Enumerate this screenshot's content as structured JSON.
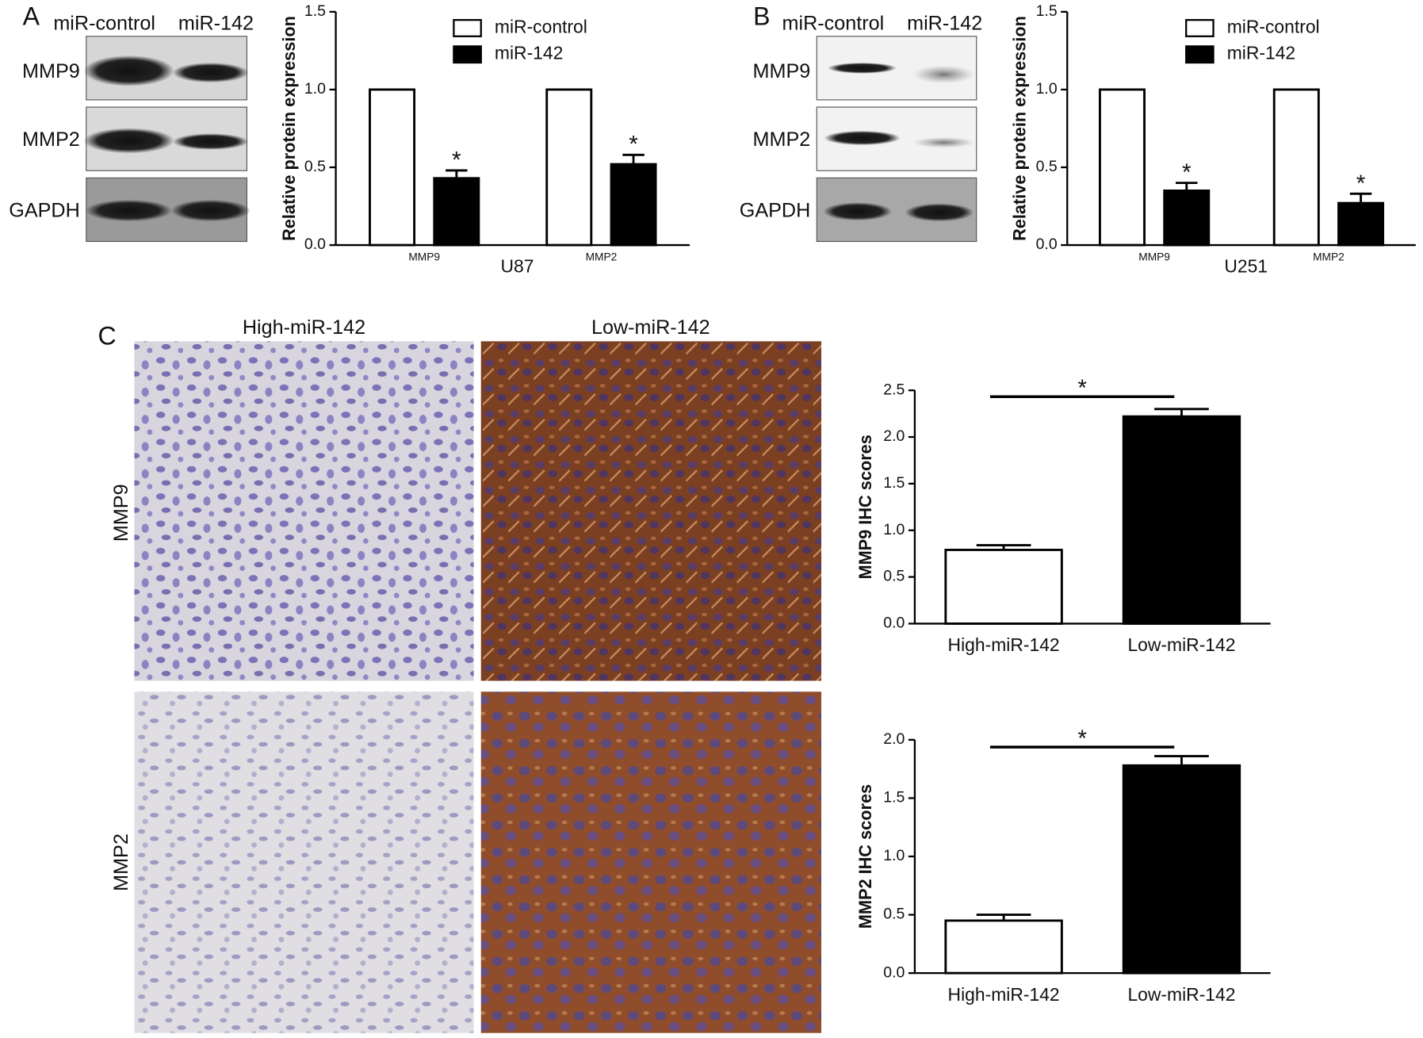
{
  "panels": {
    "A": {
      "label": "A",
      "lanes": [
        "miR-control",
        "miR-142"
      ],
      "rows": [
        "MMP9",
        "MMP2",
        "GAPDH"
      ]
    },
    "B": {
      "label": "B",
      "lanes": [
        "miR-control",
        "miR-142"
      ],
      "rows": [
        "MMP9",
        "MMP2",
        "GAPDH"
      ]
    },
    "C": {
      "label": "C",
      "columns": [
        "High-miR-142",
        "Low-miR-142"
      ],
      "rows": [
        "MMP9",
        "MMP2"
      ]
    }
  },
  "chart_data": [
    {
      "type": "bar",
      "ylabel": "Relative protein expression",
      "xlabel": "U87",
      "categories": [
        "MMP9",
        "MMP2"
      ],
      "series": [
        {
          "name": "miR-control",
          "color": "#ffffff",
          "values": [
            1,
            1
          ]
        },
        {
          "name": "miR-142",
          "color": "#000000",
          "values": [
            0.43,
            0.52
          ],
          "errors": [
            0.05,
            0.06
          ],
          "significance": [
            "*",
            "*"
          ]
        }
      ],
      "ylim": [
        0,
        1.5
      ],
      "yticks": [
        {
          "value": 0,
          "label": "0.0"
        },
        0.5,
        {
          "value": 1,
          "label": "1.0"
        },
        1.5
      ],
      "legend": "top"
    },
    {
      "type": "bar",
      "ylabel": "Relative protein expression",
      "xlabel": "U251",
      "categories": [
        "MMP9",
        "MMP2"
      ],
      "series": [
        {
          "name": "miR-control",
          "color": "#ffffff",
          "values": [
            1,
            1
          ]
        },
        {
          "name": "miR-142",
          "color": "#000000",
          "values": [
            0.35,
            0.27
          ],
          "errors": [
            0.05,
            0.06
          ],
          "significance": [
            "*",
            "*"
          ]
        }
      ],
      "ylim": [
        0,
        1.5
      ],
      "yticks": [
        {
          "value": 0,
          "label": "0.0"
        },
        0.5,
        {
          "value": 1,
          "label": "1.0"
        },
        1.5
      ],
      "legend": "top"
    },
    {
      "type": "bar",
      "ylabel": "MMP9 IHC scores",
      "categories": [
        "High-miR-142",
        "Low-miR-142"
      ],
      "values": [
        0.79,
        2.22
      ],
      "errors": [
        0.05,
        0.08
      ],
      "colors": [
        "#ffffff",
        "#000000"
      ],
      "significance": "*",
      "ylim": [
        0,
        2.5
      ],
      "yticks": [
        {
          "value": 0,
          "label": "0.0"
        },
        0.5,
        {
          "value": 1,
          "label": "1.0"
        },
        1.5,
        {
          "value": 2,
          "label": "2.0"
        },
        2.5
      ]
    },
    {
      "type": "bar",
      "ylabel": "MMP2 IHC scores",
      "categories": [
        "High-miR-142",
        "Low-miR-142"
      ],
      "values": [
        0.45,
        1.78
      ],
      "errors": [
        0.05,
        0.08
      ],
      "colors": [
        "#ffffff",
        "#000000"
      ],
      "significance": "*",
      "ylim": [
        0,
        2
      ],
      "yticks": [
        {
          "value": 0,
          "label": "0.0"
        },
        0.5,
        {
          "value": 1,
          "label": "1.0"
        },
        1.5,
        {
          "value": 2,
          "label": "2.0"
        }
      ]
    }
  ]
}
